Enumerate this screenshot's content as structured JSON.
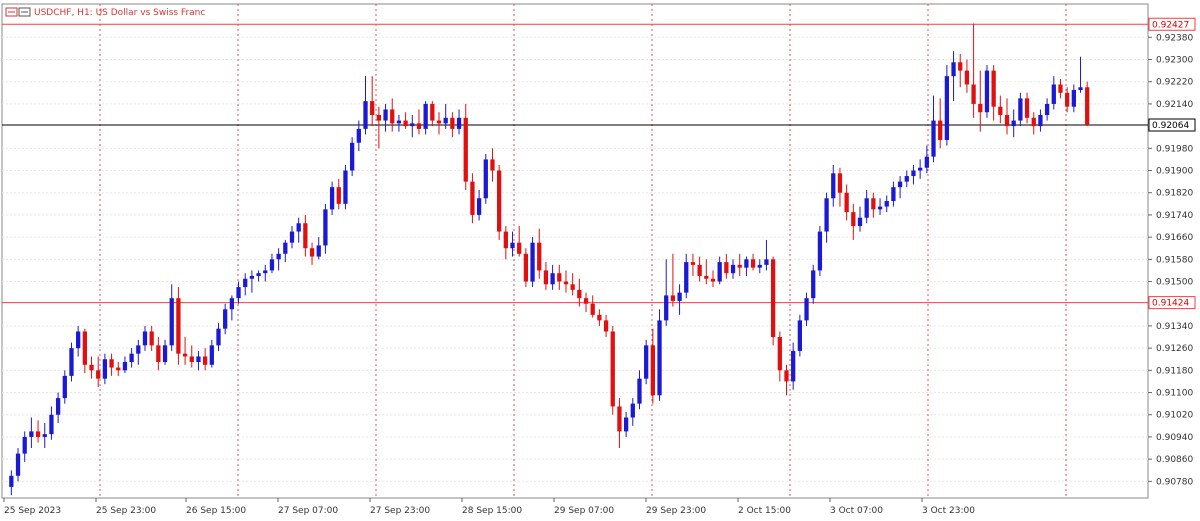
{
  "window": {
    "symbol_title": "USDCHF, H1:  US Dollar vs Swiss Franc"
  },
  "chart_data": {
    "type": "candlestick",
    "title": "USDCHF, H1:  US Dollar vs Swiss Franc",
    "ylim": [
      0.9072,
      0.925
    ],
    "y_ticks": [
      "0.92380",
      "0.92300",
      "0.92220",
      "0.92140",
      "0.91980",
      "0.91900",
      "0.91820",
      "0.91740",
      "0.91660",
      "0.91580",
      "0.91500",
      "0.91340",
      "0.91260",
      "0.91180",
      "0.91100",
      "0.91020",
      "0.90940",
      "0.90860",
      "0.90780"
    ],
    "x_ticks": [
      "25 Sep 2023",
      "25 Sep 23:00",
      "26 Sep 15:00",
      "27 Sep 07:00",
      "27 Sep 23:00",
      "28 Sep 15:00",
      "29 Sep 07:00",
      "29 Sep 23:00",
      "2 Oct 15:00",
      "3 Oct 07:00",
      "3 Oct 23:00"
    ],
    "grid": true,
    "horizontal_lines": [
      {
        "price": "0.92427",
        "value": 0.92427,
        "color": "#ff3b3b",
        "style": "solid"
      },
      {
        "price": "0.92064",
        "value": 0.92064,
        "color": "#000000",
        "style": "solid"
      },
      {
        "price": "0.91424",
        "value": 0.91424,
        "color": "#ff3b3b",
        "style": "solid"
      }
    ],
    "colors": {
      "bull": "#1a1ad4",
      "bear": "#e01010",
      "grid": "#e8e8e8",
      "session_line": "#e05050",
      "doji": "#2ca02c"
    },
    "candles": [
      [
        0.9076,
        0.9082,
        0.9073,
        0.908
      ],
      [
        0.908,
        0.909,
        0.9078,
        0.9088
      ],
      [
        0.9088,
        0.9096,
        0.9085,
        0.9094
      ],
      [
        0.9094,
        0.9101,
        0.909,
        0.9096
      ],
      [
        0.9096,
        0.91,
        0.9092,
        0.9094
      ],
      [
        0.9094,
        0.9099,
        0.909,
        0.9095
      ],
      [
        0.9095,
        0.9105,
        0.9093,
        0.9102
      ],
      [
        0.9102,
        0.911,
        0.9099,
        0.9108
      ],
      [
        0.9108,
        0.9118,
        0.9106,
        0.9116
      ],
      [
        0.9116,
        0.9128,
        0.9114,
        0.9126
      ],
      [
        0.9126,
        0.9134,
        0.9123,
        0.9132
      ],
      [
        0.9132,
        0.9133,
        0.9117,
        0.912
      ],
      [
        0.912,
        0.9123,
        0.9115,
        0.9118
      ],
      [
        0.9118,
        0.9123,
        0.9112,
        0.9115
      ],
      [
        0.9115,
        0.9124,
        0.9113,
        0.9122
      ],
      [
        0.9122,
        0.9124,
        0.9116,
        0.9119
      ],
      [
        0.9119,
        0.9121,
        0.9116,
        0.9118
      ],
      [
        0.9118,
        0.9123,
        0.9117,
        0.9121
      ],
      [
        0.9121,
        0.9126,
        0.9119,
        0.9124
      ],
      [
        0.9124,
        0.9129,
        0.912,
        0.9127
      ],
      [
        0.9127,
        0.9134,
        0.9125,
        0.9132
      ],
      [
        0.9132,
        0.9134,
        0.9125,
        0.9127
      ],
      [
        0.9127,
        0.913,
        0.9118,
        0.9121
      ],
      [
        0.9121,
        0.9129,
        0.912,
        0.9127
      ],
      [
        0.9127,
        0.9149,
        0.9125,
        0.9144
      ],
      [
        0.9144,
        0.9148,
        0.912,
        0.9124
      ],
      [
        0.9124,
        0.913,
        0.912,
        0.9123
      ],
      [
        0.9123,
        0.9127,
        0.9119,
        0.9121
      ],
      [
        0.9121,
        0.9125,
        0.9118,
        0.9123
      ],
      [
        0.9123,
        0.9126,
        0.9118,
        0.912
      ],
      [
        0.912,
        0.9129,
        0.9119,
        0.9127
      ],
      [
        0.9127,
        0.9135,
        0.9125,
        0.9133
      ],
      [
        0.9133,
        0.9142,
        0.9131,
        0.914
      ],
      [
        0.914,
        0.9145,
        0.9136,
        0.9144
      ],
      [
        0.9144,
        0.915,
        0.9142,
        0.9148
      ],
      [
        0.9148,
        0.9153,
        0.9145,
        0.9151
      ],
      [
        0.9151,
        0.9154,
        0.9146,
        0.9152
      ],
      [
        0.9152,
        0.9154,
        0.915,
        0.9153
      ],
      [
        0.9153,
        0.9156,
        0.915,
        0.9154
      ],
      [
        0.9154,
        0.916,
        0.9153,
        0.9158
      ],
      [
        0.9158,
        0.9162,
        0.9154,
        0.916
      ],
      [
        0.916,
        0.9165,
        0.9157,
        0.9164
      ],
      [
        0.9164,
        0.917,
        0.9162,
        0.9168
      ],
      [
        0.9168,
        0.9173,
        0.9164,
        0.9171
      ],
      [
        0.9171,
        0.9174,
        0.9159,
        0.9162
      ],
      [
        0.9162,
        0.9164,
        0.9156,
        0.9159
      ],
      [
        0.9159,
        0.9166,
        0.9158,
        0.9163
      ],
      [
        0.9163,
        0.9178,
        0.916,
        0.9176
      ],
      [
        0.9176,
        0.9186,
        0.9174,
        0.9184
      ],
      [
        0.9184,
        0.9187,
        0.9176,
        0.9178
      ],
      [
        0.9178,
        0.9192,
        0.9176,
        0.919
      ],
      [
        0.919,
        0.9202,
        0.9188,
        0.92
      ],
      [
        0.92,
        0.9208,
        0.9197,
        0.9205
      ],
      [
        0.9205,
        0.9224,
        0.9203,
        0.9215
      ],
      [
        0.9215,
        0.9224,
        0.9206,
        0.921
      ],
      [
        0.921,
        0.9213,
        0.9198,
        0.9208
      ],
      [
        0.9208,
        0.9214,
        0.9204,
        0.9212
      ],
      [
        0.9212,
        0.9216,
        0.9204,
        0.9207
      ],
      [
        0.9207,
        0.921,
        0.9204,
        0.9208
      ],
      [
        0.9208,
        0.9211,
        0.9205,
        0.9206
      ],
      [
        0.9206,
        0.921,
        0.9202,
        0.9207
      ],
      [
        0.9207,
        0.9212,
        0.9203,
        0.9205
      ],
      [
        0.9205,
        0.9215,
        0.9203,
        0.9214
      ],
      [
        0.9214,
        0.9215,
        0.9206,
        0.9208
      ],
      [
        0.9208,
        0.9211,
        0.9203,
        0.9207
      ],
      [
        0.9207,
        0.9214,
        0.9205,
        0.9209
      ],
      [
        0.9209,
        0.9211,
        0.9202,
        0.9205
      ],
      [
        0.9205,
        0.9212,
        0.9203,
        0.9209
      ],
      [
        0.9209,
        0.9214,
        0.9183,
        0.9186
      ],
      [
        0.9186,
        0.9189,
        0.9171,
        0.9174
      ],
      [
        0.9174,
        0.9183,
        0.9172,
        0.918
      ],
      [
        0.918,
        0.9196,
        0.9178,
        0.9194
      ],
      [
        0.9194,
        0.9198,
        0.9186,
        0.919
      ],
      [
        0.919,
        0.9192,
        0.9165,
        0.9168
      ],
      [
        0.9168,
        0.917,
        0.9158,
        0.9162
      ],
      [
        0.9162,
        0.9168,
        0.9159,
        0.9164
      ],
      [
        0.9164,
        0.917,
        0.9159,
        0.916
      ],
      [
        0.916,
        0.9162,
        0.9148,
        0.915
      ],
      [
        0.915,
        0.9166,
        0.9148,
        0.9164
      ],
      [
        0.9164,
        0.9169,
        0.9151,
        0.9154
      ],
      [
        0.9154,
        0.9157,
        0.9147,
        0.9149
      ],
      [
        0.9149,
        0.9156,
        0.9147,
        0.9153
      ],
      [
        0.9153,
        0.9156,
        0.9147,
        0.915
      ],
      [
        0.915,
        0.9154,
        0.9146,
        0.9149
      ],
      [
        0.9149,
        0.9153,
        0.9145,
        0.9147
      ],
      [
        0.9147,
        0.9151,
        0.9141,
        0.9144
      ],
      [
        0.9144,
        0.9146,
        0.9139,
        0.9142
      ],
      [
        0.9142,
        0.9145,
        0.9137,
        0.9138
      ],
      [
        0.9138,
        0.914,
        0.9134,
        0.9136
      ],
      [
        0.9136,
        0.9138,
        0.913,
        0.9132
      ],
      [
        0.9132,
        0.9134,
        0.9102,
        0.9105
      ],
      [
        0.9105,
        0.9108,
        0.909,
        0.9096
      ],
      [
        0.9096,
        0.9103,
        0.9094,
        0.9101
      ],
      [
        0.9101,
        0.9108,
        0.9098,
        0.9106
      ],
      [
        0.9106,
        0.9118,
        0.9104,
        0.9115
      ],
      [
        0.9115,
        0.9129,
        0.9113,
        0.9127
      ],
      [
        0.9127,
        0.9133,
        0.9106,
        0.9109
      ],
      [
        0.9109,
        0.914,
        0.9107,
        0.9136
      ],
      [
        0.9136,
        0.9158,
        0.9134,
        0.9145
      ],
      [
        0.9145,
        0.916,
        0.9141,
        0.9143
      ],
      [
        0.9143,
        0.9149,
        0.9138,
        0.9146
      ],
      [
        0.9146,
        0.916,
        0.9144,
        0.9157
      ],
      [
        0.9157,
        0.916,
        0.9152,
        0.9156
      ],
      [
        0.9156,
        0.9159,
        0.915,
        0.9152
      ],
      [
        0.9152,
        0.9158,
        0.9149,
        0.9151
      ],
      [
        0.9151,
        0.9154,
        0.9148,
        0.915
      ],
      [
        0.915,
        0.9159,
        0.9149,
        0.9157
      ],
      [
        0.9157,
        0.916,
        0.9151,
        0.9153
      ],
      [
        0.9153,
        0.9158,
        0.9151,
        0.9156
      ],
      [
        0.9156,
        0.916,
        0.9152,
        0.9155
      ],
      [
        0.9155,
        0.9159,
        0.9152,
        0.9158
      ],
      [
        0.9158,
        0.916,
        0.9154,
        0.9155
      ],
      [
        0.9155,
        0.9158,
        0.9153,
        0.9156
      ],
      [
        0.9156,
        0.9165,
        0.9154,
        0.9158
      ],
      [
        0.9158,
        0.9159,
        0.9127,
        0.913
      ],
      [
        0.913,
        0.9132,
        0.9114,
        0.9118
      ],
      [
        0.9118,
        0.912,
        0.9109,
        0.9114
      ],
      [
        0.9114,
        0.9128,
        0.9111,
        0.9125
      ],
      [
        0.9125,
        0.9138,
        0.9123,
        0.9136
      ],
      [
        0.9136,
        0.9146,
        0.9134,
        0.9144
      ],
      [
        0.9144,
        0.9156,
        0.9142,
        0.9154
      ],
      [
        0.9154,
        0.917,
        0.9152,
        0.9168
      ],
      [
        0.9168,
        0.9182,
        0.9164,
        0.918
      ],
      [
        0.918,
        0.9192,
        0.9177,
        0.9189
      ],
      [
        0.9189,
        0.9191,
        0.9177,
        0.9182
      ],
      [
        0.9182,
        0.9185,
        0.9172,
        0.9175
      ],
      [
        0.9175,
        0.9178,
        0.9165,
        0.917
      ],
      [
        0.917,
        0.9177,
        0.9168,
        0.9173
      ],
      [
        0.9173,
        0.9183,
        0.9171,
        0.918
      ],
      [
        0.918,
        0.9182,
        0.9173,
        0.9176
      ],
      [
        0.9176,
        0.918,
        0.9174,
        0.9177
      ],
      [
        0.9177,
        0.9181,
        0.9175,
        0.9179
      ],
      [
        0.9179,
        0.9186,
        0.9177,
        0.9184
      ],
      [
        0.9184,
        0.9188,
        0.918,
        0.9186
      ],
      [
        0.9186,
        0.919,
        0.9184,
        0.9188
      ],
      [
        0.9188,
        0.9192,
        0.9185,
        0.919
      ],
      [
        0.919,
        0.9194,
        0.9187,
        0.9191
      ],
      [
        0.9191,
        0.9199,
        0.9189,
        0.9195
      ],
      [
        0.9195,
        0.9217,
        0.9193,
        0.9208
      ],
      [
        0.9208,
        0.9216,
        0.9198,
        0.9201
      ],
      [
        0.9201,
        0.9228,
        0.9199,
        0.9224
      ],
      [
        0.9224,
        0.9233,
        0.9215,
        0.9229
      ],
      [
        0.9229,
        0.9232,
        0.922,
        0.9226
      ],
      [
        0.9226,
        0.923,
        0.9218,
        0.9221
      ],
      [
        0.9221,
        0.9243,
        0.9209,
        0.9214
      ],
      [
        0.9214,
        0.9226,
        0.9204,
        0.9211
      ],
      [
        0.9211,
        0.9228,
        0.9209,
        0.9226
      ],
      [
        0.9226,
        0.9228,
        0.9208,
        0.9213
      ],
      [
        0.9213,
        0.9217,
        0.9207,
        0.921
      ],
      [
        0.921,
        0.9216,
        0.9203,
        0.9206
      ],
      [
        0.9206,
        0.9212,
        0.9202,
        0.9208
      ],
      [
        0.9208,
        0.9218,
        0.9206,
        0.9216
      ],
      [
        0.9216,
        0.9218,
        0.9207,
        0.9209
      ],
      [
        0.9209,
        0.9211,
        0.9203,
        0.9206
      ],
      [
        0.9206,
        0.9212,
        0.9204,
        0.921
      ],
      [
        0.921,
        0.9216,
        0.9208,
        0.9214
      ],
      [
        0.9214,
        0.9224,
        0.9212,
        0.9221
      ],
      [
        0.9221,
        0.9223,
        0.9216,
        0.9218
      ],
      [
        0.9218,
        0.922,
        0.9211,
        0.9213
      ],
      [
        0.9213,
        0.9221,
        0.9211,
        0.9219
      ],
      [
        0.9219,
        0.9231,
        0.9218,
        0.922
      ],
      [
        0.922,
        0.9222,
        0.9206,
        0.92064
      ]
    ]
  }
}
